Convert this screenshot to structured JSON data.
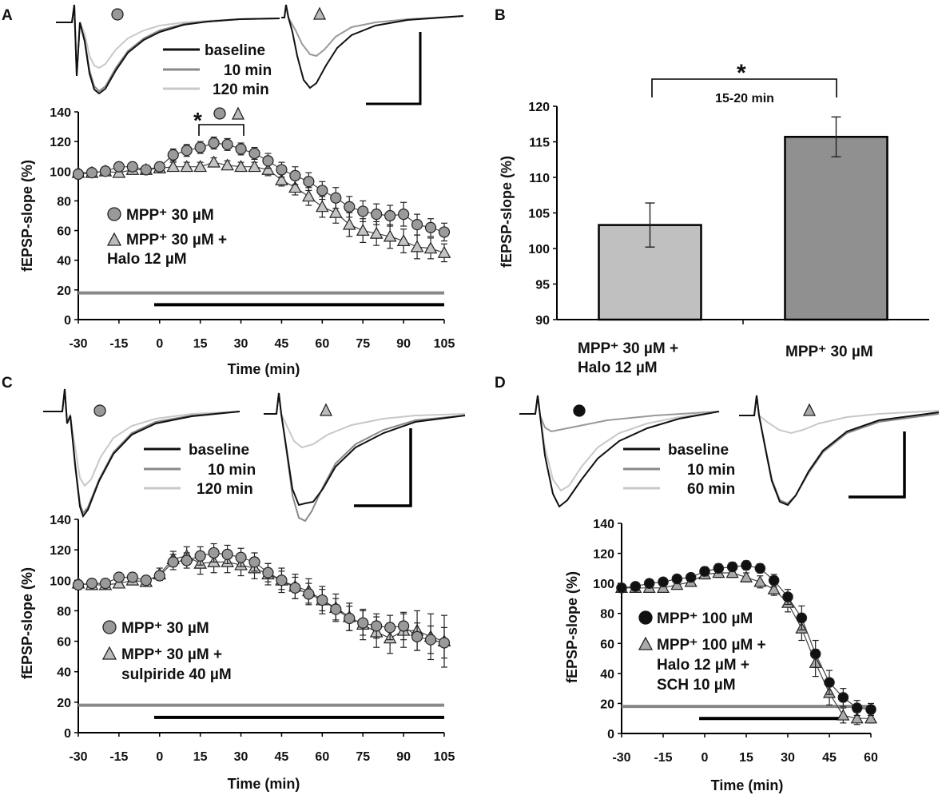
{
  "chart_data": [
    {
      "panel": "A",
      "type": "scatter",
      "xlabel": "Time (min)",
      "ylabel": "fEPSP-slope (%)",
      "xlim": [
        -30,
        105
      ],
      "ylim": [
        0,
        140
      ],
      "xticks": [
        "-30",
        "-15",
        "0",
        "15",
        "30",
        "45",
        "60",
        "75",
        "90",
        "105"
      ],
      "yticks": [
        "0",
        "20",
        "40",
        "60",
        "80",
        "100",
        "120",
        "140"
      ],
      "trace_legend": [
        "baseline",
        "10 min",
        "120 min"
      ],
      "significance": "*",
      "series": [
        {
          "name": "MPP⁺ 30 µM",
          "marker": "circle",
          "color": "#9a9a9a",
          "x": [
            -30,
            -25,
            -20,
            -15,
            -10,
            -5,
            0,
            5,
            10,
            15,
            20,
            25,
            30,
            35,
            40,
            45,
            50,
            55,
            60,
            65,
            70,
            75,
            80,
            85,
            90,
            95,
            100,
            105
          ],
          "y": [
            98,
            99,
            100,
            103,
            103,
            101,
            103,
            111,
            114,
            116,
            119,
            118,
            115,
            112,
            107,
            101,
            97,
            93,
            87,
            82,
            76,
            73,
            71,
            70,
            71,
            64,
            62,
            59
          ],
          "err": [
            3,
            2,
            2,
            2,
            2,
            2,
            3,
            4,
            4,
            4,
            4,
            4,
            4,
            4,
            5,
            5,
            6,
            6,
            6,
            7,
            7,
            7,
            7,
            7,
            8,
            7,
            6,
            6
          ]
        },
        {
          "name": "MPP⁺ 30 µM + Halo 12 µM",
          "marker": "triangle",
          "color": "#c4c4c4",
          "x": [
            -30,
            -25,
            -20,
            -15,
            -10,
            -5,
            0,
            5,
            10,
            15,
            20,
            25,
            30,
            35,
            40,
            45,
            50,
            55,
            60,
            65,
            70,
            75,
            80,
            85,
            90,
            95,
            100,
            105
          ],
          "y": [
            99,
            99,
            100,
            99,
            101,
            101,
            102,
            103,
            103,
            103,
            106,
            104,
            103,
            103,
            101,
            94,
            89,
            83,
            76,
            72,
            64,
            60,
            58,
            56,
            53,
            49,
            48,
            45
          ],
          "err": [
            2,
            2,
            2,
            2,
            2,
            2,
            3,
            3,
            3,
            3,
            3,
            3,
            3,
            3,
            4,
            4,
            5,
            6,
            7,
            7,
            8,
            8,
            8,
            8,
            8,
            8,
            7,
            6
          ]
        }
      ],
      "bars": [
        {
          "label": "MPP⁺ 30 µM application",
          "color": "#888888",
          "y": 18,
          "x0": -30,
          "x1": 105
        },
        {
          "label": "treatment application",
          "color": "#000000",
          "y": 10,
          "x0": -2,
          "x1": 105
        }
      ]
    },
    {
      "panel": "B",
      "type": "bar",
      "ylabel": "fEPSP-slope (%)",
      "ylim": [
        90,
        120
      ],
      "yticks": [
        "90",
        "95",
        "100",
        "105",
        "110",
        "115",
        "120"
      ],
      "categories": [
        "MPP⁺ 30 µM + Halo 12 µM",
        "MPP⁺ 30 µM"
      ],
      "values": [
        103.3,
        115.7
      ],
      "errors": [
        3.1,
        2.8
      ],
      "colors": [
        "#c0c0c0",
        "#909090"
      ],
      "annotation": "15-20 min",
      "significance": "*"
    },
    {
      "panel": "C",
      "type": "scatter",
      "xlabel": "Time (min)",
      "ylabel": "fEPSP-slope (%)",
      "xlim": [
        -30,
        105
      ],
      "ylim": [
        0,
        140
      ],
      "xticks": [
        "-30",
        "-15",
        "0",
        "15",
        "30",
        "45",
        "60",
        "75",
        "90",
        "105"
      ],
      "yticks": [
        "0",
        "20",
        "40",
        "60",
        "80",
        "100",
        "120",
        "140"
      ],
      "trace_legend": [
        "baseline",
        "10 min",
        "120 min"
      ],
      "series": [
        {
          "name": "MPP⁺ 30 µM",
          "marker": "circle",
          "color": "#9a9a9a",
          "x": [
            -30,
            -25,
            -20,
            -15,
            -10,
            -5,
            0,
            5,
            10,
            15,
            20,
            25,
            30,
            35,
            40,
            45,
            50,
            55,
            60,
            65,
            70,
            75,
            80,
            85,
            90,
            95,
            100,
            105
          ],
          "y": [
            97,
            98,
            98,
            102,
            102,
            100,
            103,
            112,
            113,
            116,
            118,
            117,
            115,
            112,
            105,
            100,
            95,
            91,
            87,
            81,
            75,
            72,
            70,
            69,
            70,
            63,
            61,
            59
          ],
          "err": [
            3,
            2,
            2,
            2,
            2,
            2,
            3,
            5,
            5,
            6,
            6,
            6,
            6,
            6,
            6,
            6,
            7,
            7,
            7,
            7,
            8,
            8,
            8,
            8,
            9,
            9,
            9,
            10
          ]
        },
        {
          "name": "MPP⁺ 30 µM + sulpiride 40 µM",
          "marker": "triangle",
          "color": "#c4c4c4",
          "x": [
            -30,
            -25,
            -20,
            -15,
            -10,
            -5,
            0,
            5,
            10,
            15,
            20,
            25,
            30,
            35,
            40,
            45,
            50,
            55,
            60,
            65,
            70,
            75,
            80,
            85,
            90,
            95,
            100,
            105
          ],
          "y": [
            98,
            97,
            97,
            98,
            100,
            99,
            104,
            114,
            116,
            111,
            112,
            112,
            110,
            108,
            104,
            100,
            96,
            93,
            87,
            82,
            76,
            71,
            66,
            62,
            67,
            67,
            63,
            60
          ],
          "err": [
            2,
            2,
            2,
            2,
            2,
            2,
            4,
            5,
            6,
            7,
            7,
            7,
            7,
            7,
            7,
            8,
            8,
            8,
            9,
            9,
            9,
            10,
            10,
            10,
            11,
            13,
            15,
            17
          ]
        }
      ],
      "bars": [
        {
          "label": "MPP⁺ 30 µM application",
          "color": "#888888",
          "y": 18,
          "x0": -30,
          "x1": 105
        },
        {
          "label": "treatment application",
          "color": "#000000",
          "y": 10,
          "x0": -2,
          "x1": 105
        }
      ]
    },
    {
      "panel": "D",
      "type": "scatter",
      "xlabel": "Time (min)",
      "ylabel": "fEPSP-slope (%)",
      "xlim": [
        -30,
        60
      ],
      "ylim": [
        0,
        140
      ],
      "xticks": [
        "-30",
        "-15",
        "0",
        "15",
        "30",
        "45",
        "60"
      ],
      "yticks": [
        "0",
        "20",
        "40",
        "60",
        "80",
        "100",
        "120",
        "140"
      ],
      "trace_legend": [
        "baseline",
        "10 min",
        "60 min"
      ],
      "series": [
        {
          "name": "MPP⁺ 100 µM",
          "marker": "circle",
          "color": "#111111",
          "x": [
            -30,
            -25,
            -20,
            -15,
            -10,
            -5,
            0,
            5,
            10,
            15,
            20,
            25,
            30,
            35,
            40,
            45,
            50,
            55,
            60
          ],
          "y": [
            97,
            98,
            100,
            101,
            103,
            104,
            108,
            110,
            111,
            112,
            110,
            102,
            91,
            77,
            53,
            34,
            24,
            17,
            16
          ],
          "err": [
            2,
            2,
            2,
            2,
            2,
            2,
            3,
            3,
            3,
            3,
            3,
            4,
            5,
            8,
            9,
            8,
            6,
            5,
            4
          ]
        },
        {
          "name": "MPP⁺ 100 µM + Halo 12 µM + SCH 10 µM",
          "marker": "triangle",
          "color": "#aaaaaa",
          "x": [
            -30,
            -25,
            -20,
            -15,
            -10,
            -5,
            0,
            5,
            10,
            15,
            20,
            25,
            30,
            35,
            40,
            45,
            50,
            55,
            60
          ],
          "y": [
            97,
            97,
            97,
            97,
            99,
            101,
            106,
            107,
            107,
            104,
            101,
            96,
            87,
            70,
            47,
            27,
            12,
            10,
            10
          ],
          "err": [
            2,
            2,
            2,
            2,
            2,
            2,
            3,
            3,
            3,
            3,
            4,
            4,
            6,
            8,
            9,
            8,
            5,
            4,
            3
          ]
        }
      ],
      "bars": [
        {
          "label": "MPP⁺ application",
          "color": "#888888",
          "y": 18,
          "x0": -30,
          "x1": 60
        },
        {
          "label": "treatment application",
          "color": "#000000",
          "y": 10,
          "x0": -2,
          "x1": 50
        }
      ]
    }
  ],
  "labels": {
    "panel_a": "A",
    "panel_b": "B",
    "panel_c": "C",
    "panel_d": "D",
    "ylabel_a": "fEPSP-slope (%)",
    "xlabel_a": "Time (min)",
    "ylabel_b": "fEPSP-slope (%)",
    "ylabel_c": "fEPSP-slope (%)",
    "xlabel_c": "Time (min)",
    "ylabel_d": "fEPSP-slope (%)",
    "xlabel_d": "Time (min)",
    "trace_a": [
      "baseline",
      "10 min",
      "120 min"
    ],
    "trace_c": [
      "baseline",
      "10 min",
      "120 min"
    ],
    "trace_d": [
      "baseline",
      "10 min",
      "60 min"
    ],
    "a_leg1": "MPP⁺ 30 µM",
    "a_leg2a": "MPP⁺ 30 µM +",
    "a_leg2b": "Halo 12 µM",
    "c_leg1": "MPP⁺ 30 µM",
    "c_leg2a": "MPP⁺ 30 µM +",
    "c_leg2b": "sulpiride 40 µM",
    "d_leg1": "MPP⁺ 100 µM",
    "d_leg2a": "MPP⁺ 100 µM +",
    "d_leg2b": "Halo 12 µM +",
    "d_leg2c": "SCH 10 µM",
    "b_cat1a": "MPP⁺ 30 µM +",
    "b_cat1b": "Halo 12 µM",
    "b_cat2": "MPP⁺ 30 µM",
    "b_note": "15-20 min",
    "star": "*"
  }
}
